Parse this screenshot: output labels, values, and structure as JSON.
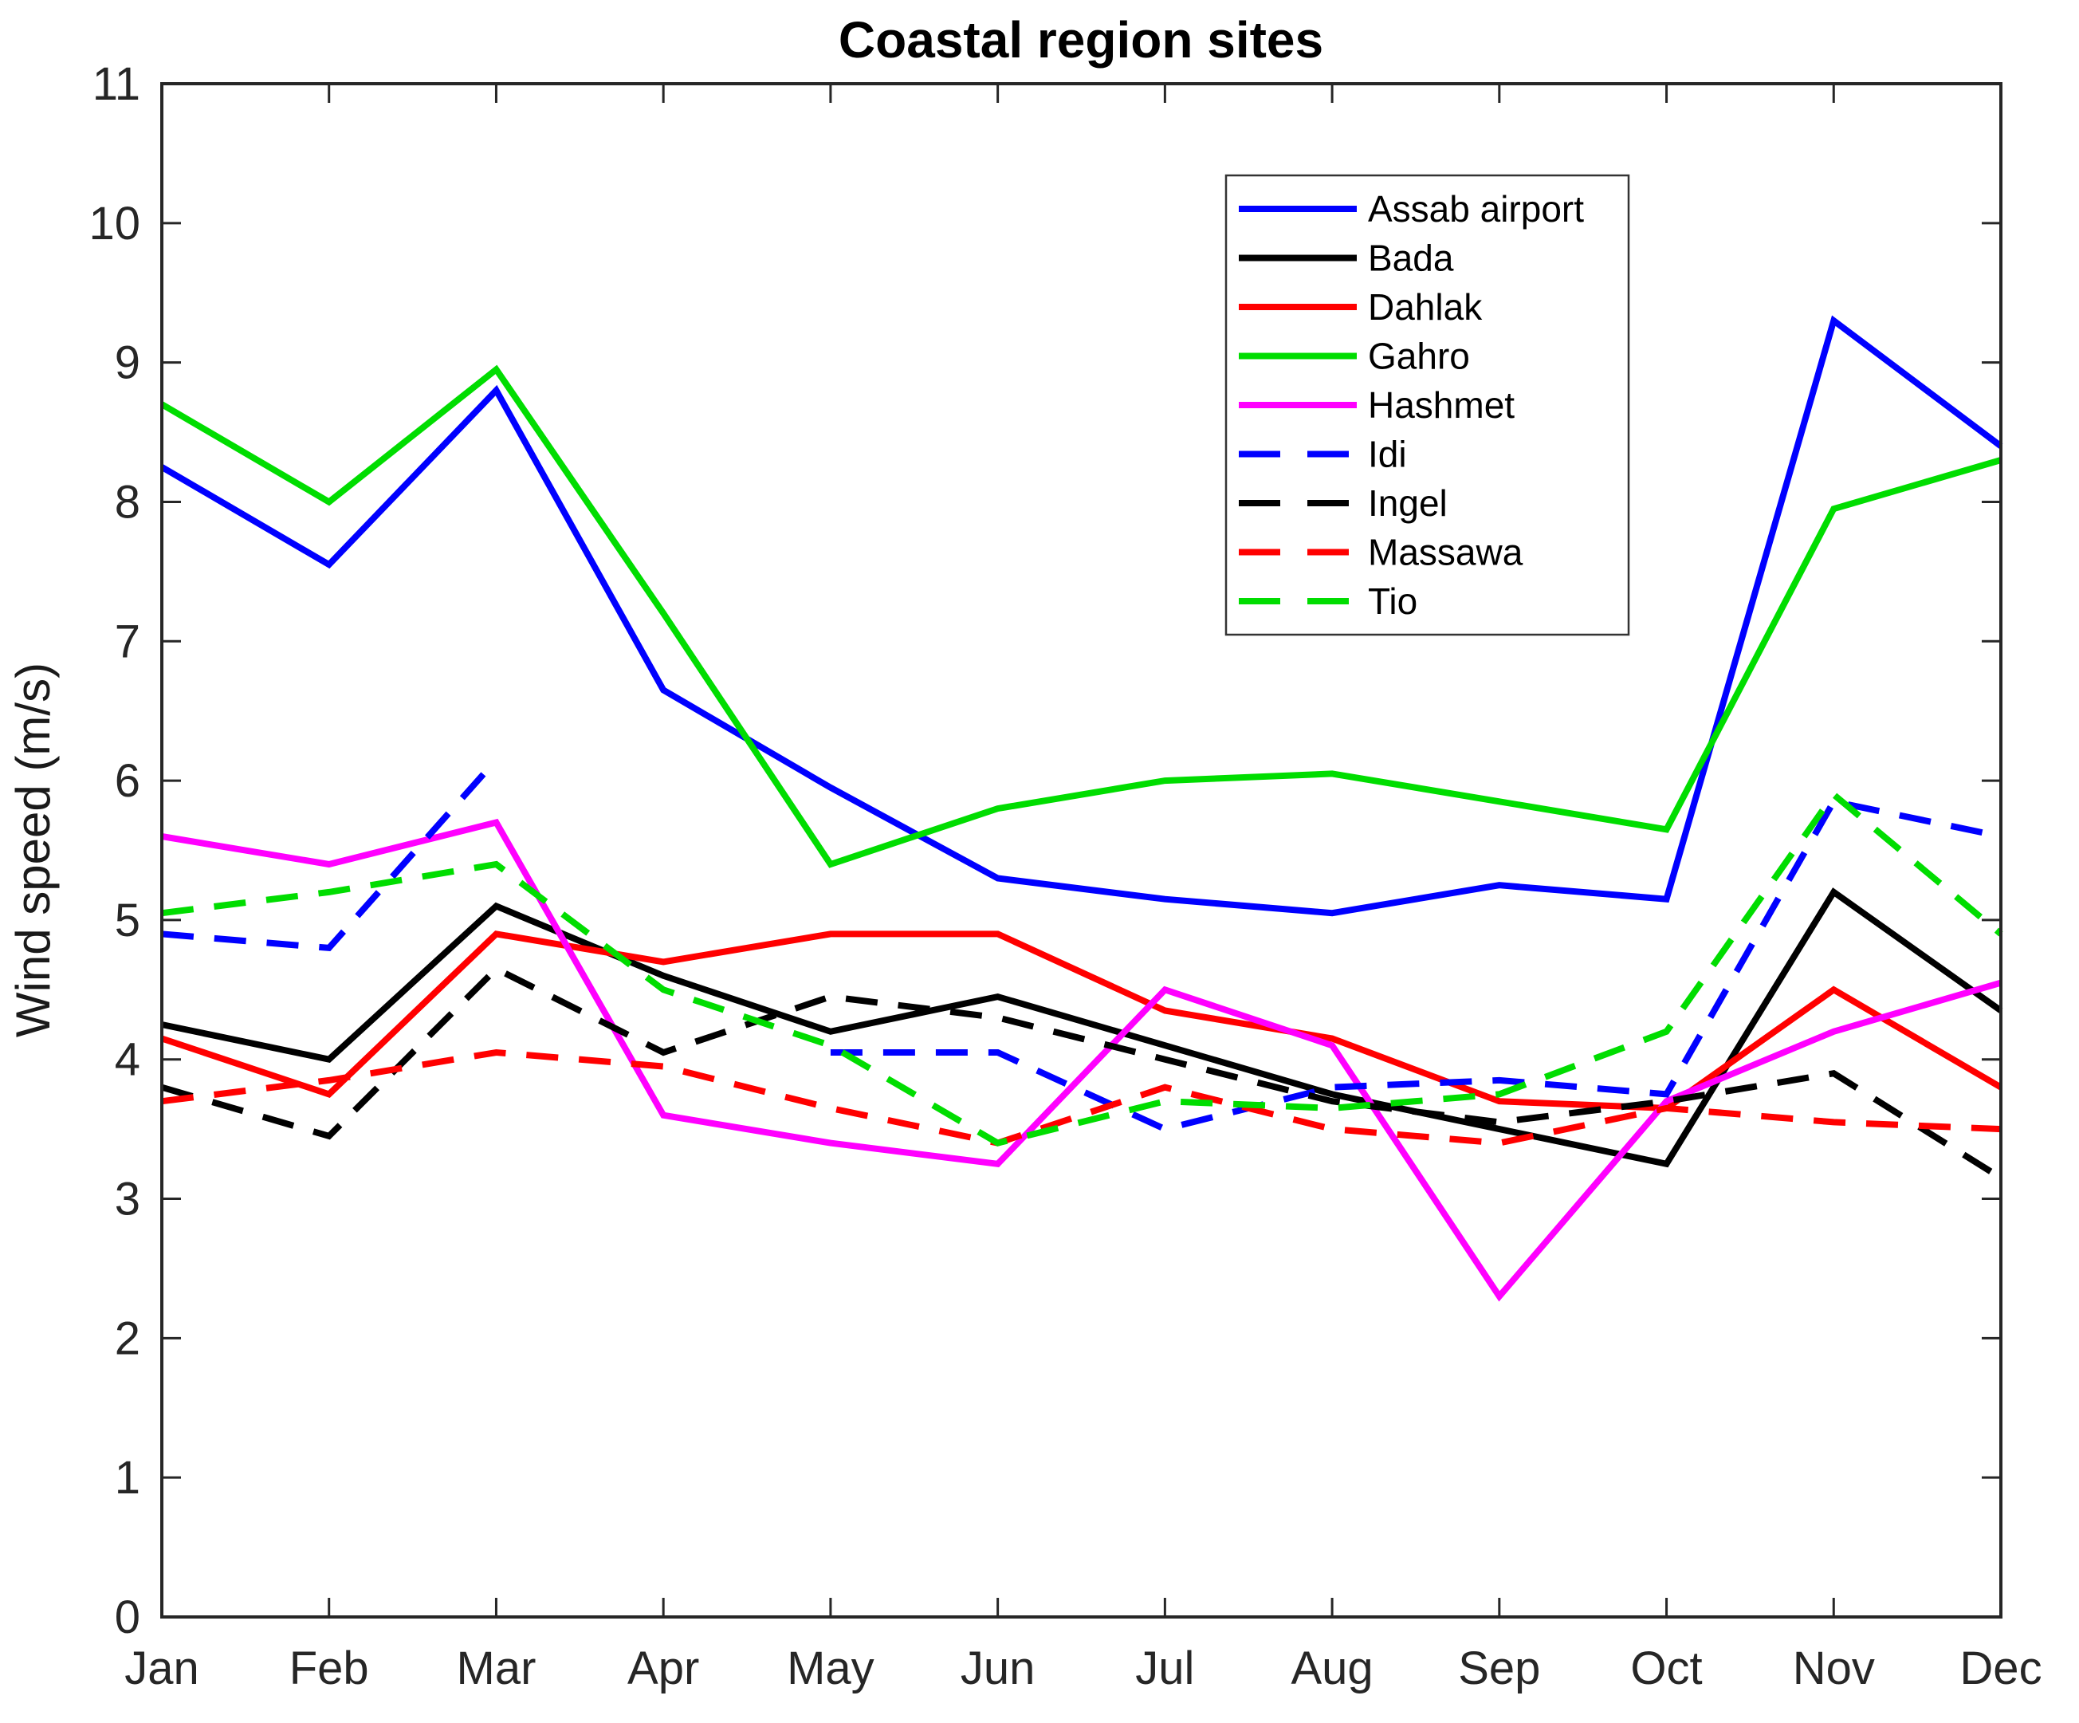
{
  "chart_data": {
    "type": "line",
    "title": "Coastal region sites",
    "xlabel": "",
    "ylabel": "Wind speed (m/s)",
    "ylim": [
      0,
      11
    ],
    "ytick_step": 1,
    "grid": false,
    "legend_position": "upper-right-inside",
    "categories": [
      "Jan",
      "Feb",
      "Mar",
      "Apr",
      "May",
      "Jun",
      "Jul",
      "Aug",
      "Sep",
      "Oct",
      "Nov",
      "Dec"
    ],
    "series": [
      {
        "name": "Assab airport",
        "color": "#0000ff",
        "style": "solid",
        "values": [
          8.25,
          7.55,
          8.8,
          6.65,
          5.95,
          5.3,
          5.15,
          5.05,
          5.25,
          5.15,
          9.3,
          8.4
        ]
      },
      {
        "name": "Bada",
        "color": "#000000",
        "style": "solid",
        "values": [
          4.25,
          4.0,
          5.1,
          4.6,
          4.2,
          4.45,
          4.1,
          3.75,
          3.5,
          3.25,
          5.2,
          4.35
        ]
      },
      {
        "name": "Dahlak",
        "color": "#ff0000",
        "style": "solid",
        "values": [
          4.15,
          3.75,
          4.9,
          4.7,
          4.9,
          4.9,
          4.35,
          4.15,
          3.7,
          3.65,
          4.5,
          3.8
        ]
      },
      {
        "name": "Gahro",
        "color": "#00dd00",
        "style": "solid",
        "values": [
          8.7,
          8.0,
          8.95,
          7.2,
          5.4,
          5.8,
          6.0,
          6.05,
          5.85,
          5.65,
          7.95,
          8.3
        ]
      },
      {
        "name": "Hashmet",
        "color": "#ff00ff",
        "style": "solid",
        "values": [
          5.6,
          5.4,
          5.7,
          3.6,
          3.4,
          3.25,
          4.5,
          4.1,
          2.3,
          3.7,
          4.2,
          4.55
        ]
      },
      {
        "name": "Idi",
        "color": "#0000ff",
        "style": "dashed",
        "values": [
          4.9,
          4.8,
          6.15,
          null,
          4.05,
          4.05,
          3.5,
          3.8,
          3.85,
          3.75,
          5.85,
          5.6
        ]
      },
      {
        "name": "Ingel",
        "color": "#000000",
        "style": "dashed",
        "values": [
          3.8,
          3.45,
          4.65,
          4.05,
          4.45,
          4.3,
          4.0,
          3.7,
          3.55,
          3.7,
          3.9,
          3.15
        ]
      },
      {
        "name": "Massawa",
        "color": "#ff0000",
        "style": "dashed",
        "values": [
          3.7,
          3.85,
          4.05,
          3.95,
          3.65,
          3.4,
          3.8,
          3.5,
          3.4,
          3.65,
          3.55,
          3.5
        ]
      },
      {
        "name": "Tio",
        "color": "#00dd00",
        "style": "dashed",
        "values": [
          5.05,
          5.2,
          5.4,
          4.5,
          4.1,
          3.4,
          3.7,
          3.65,
          3.75,
          4.2,
          5.9,
          4.9
        ]
      }
    ]
  }
}
